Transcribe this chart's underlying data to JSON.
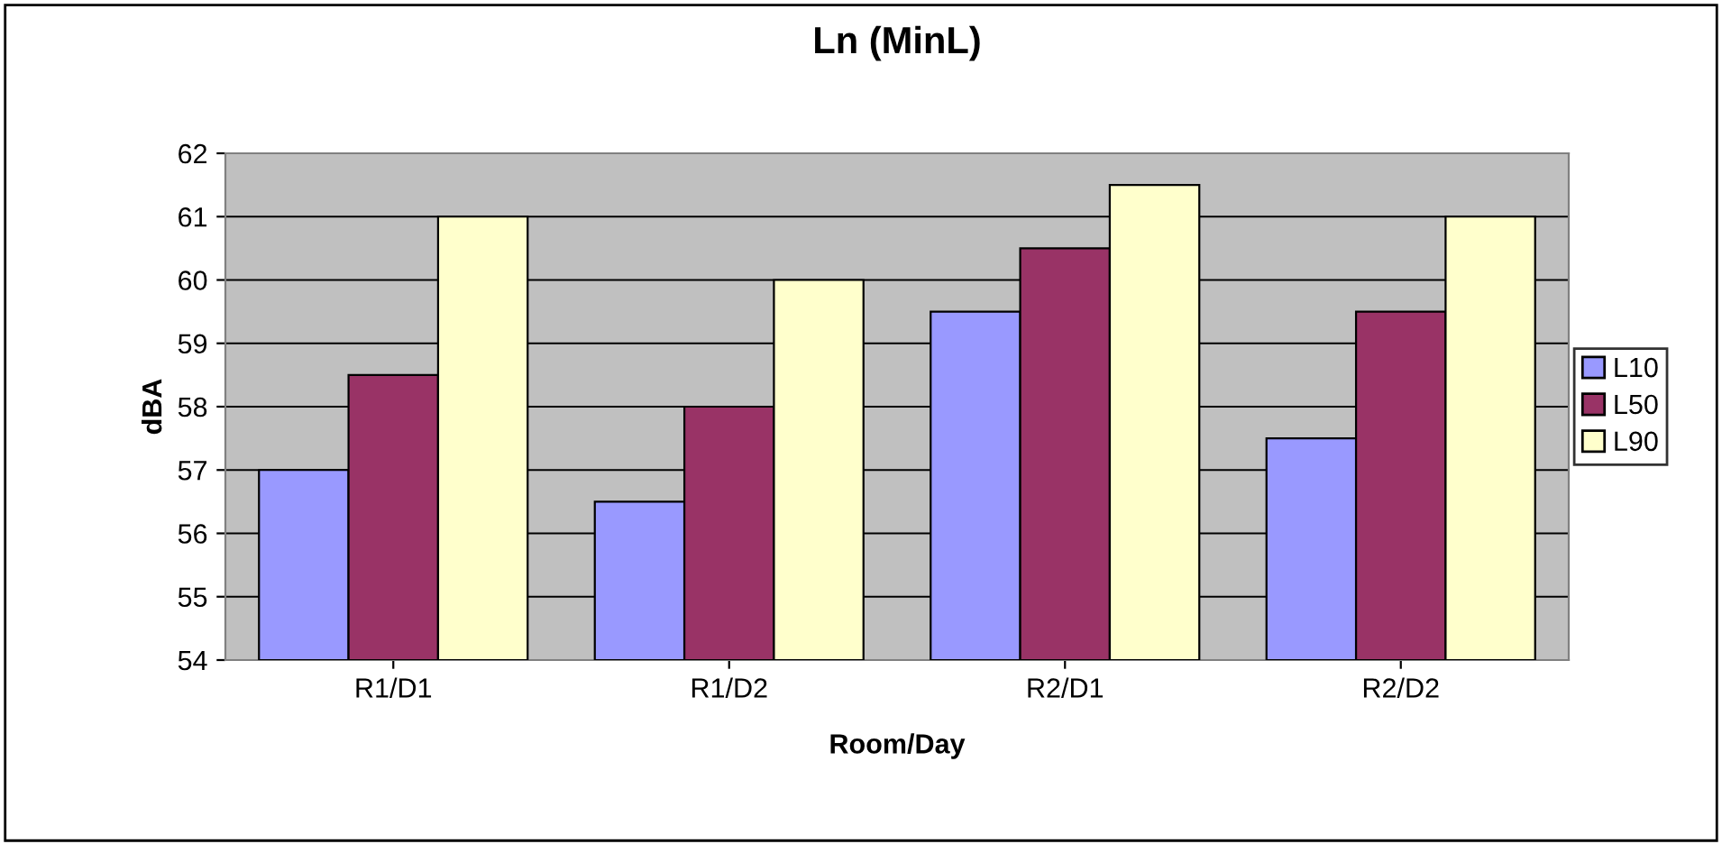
{
  "chart_data": {
    "type": "bar",
    "title": "Ln (MinL)",
    "xlabel": "Room/Day",
    "ylabel": "dBA",
    "categories": [
      "R1/D1",
      "R1/D2",
      "R2/D1",
      "R2/D2"
    ],
    "series": [
      {
        "name": "L10",
        "color": "#9999ff",
        "values": [
          57,
          56.5,
          59.5,
          57.5
        ]
      },
      {
        "name": "L50",
        "color": "#993366",
        "values": [
          58.5,
          58,
          60.5,
          59.5
        ]
      },
      {
        "name": "L90",
        "color": "#ffffcc",
        "values": [
          61,
          60,
          61.5,
          61
        ]
      }
    ],
    "ylim": [
      54,
      62
    ],
    "yticks": [
      54,
      55,
      56,
      57,
      58,
      59,
      60,
      61,
      62
    ],
    "grid": "y",
    "legend": "right"
  }
}
